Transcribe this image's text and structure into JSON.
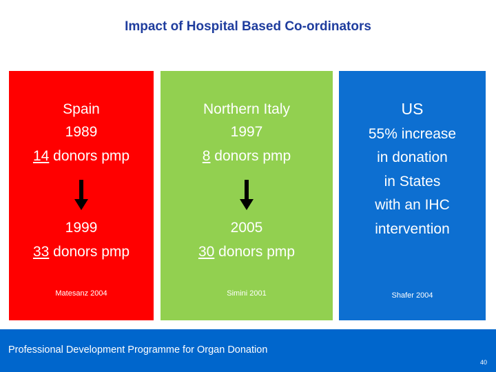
{
  "slide": {
    "title": "Impact of Hospital Based Co-ordinators",
    "columns": [
      {
        "heading": "Spain",
        "start_year": "1989",
        "start_value": "14",
        "start_unit": " donors pmp",
        "end_year": "1999",
        "end_value": "33",
        "end_unit": " donors pmp",
        "source": "Matesanz 2004",
        "color": "#ff0000"
      },
      {
        "heading": "Northern Italy",
        "start_year": "1997",
        "start_value": "8",
        "start_unit": " donors pmp",
        "end_year": "2005",
        "end_value": "30",
        "end_unit": " donors pmp",
        "source": "Simini 2001",
        "color": "#92d050"
      },
      {
        "heading": "US",
        "lines": [
          "55% increase",
          "in donation",
          "in States",
          "with an IHC",
          "intervention"
        ],
        "source": "Shafer 2004",
        "color": "#0d6fd1"
      }
    ],
    "arrow_icon": "down-arrow-icon"
  },
  "footer": {
    "text": "Professional Development Programme for Organ Donation",
    "page_number": "40",
    "color": "#0066cc"
  }
}
